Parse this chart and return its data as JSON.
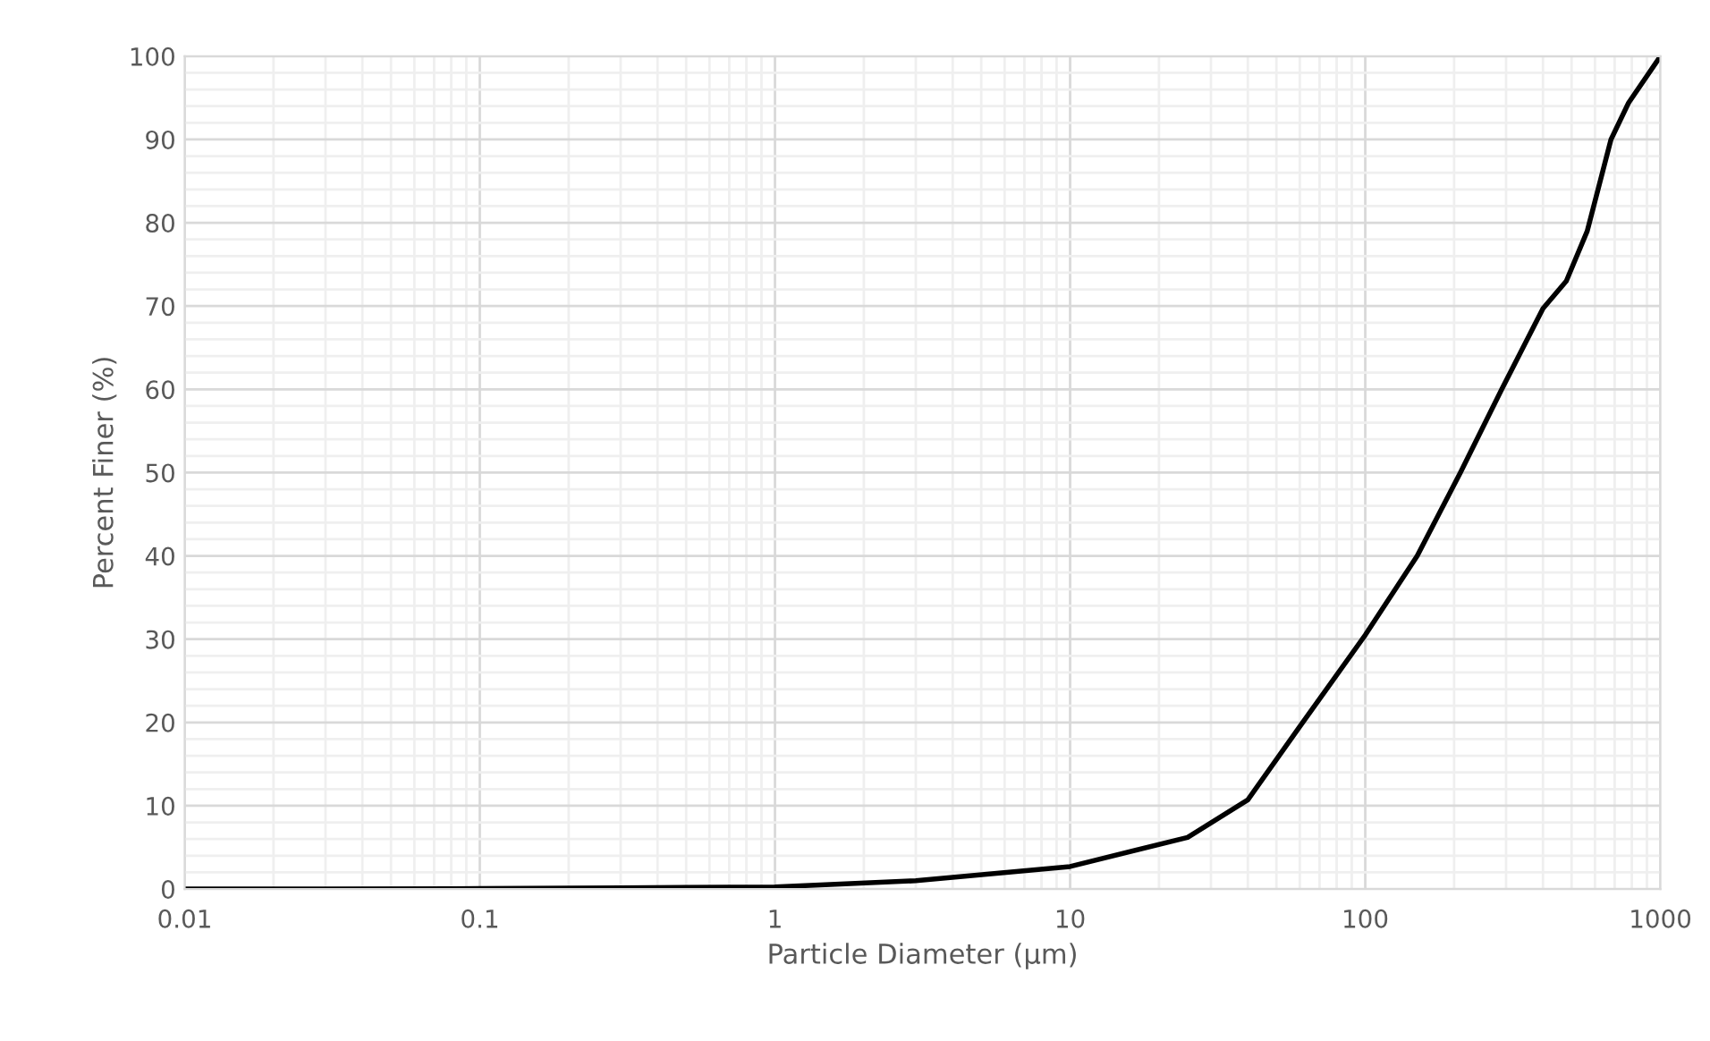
{
  "chart_data": {
    "type": "line",
    "xlabel": "Particle Diameter (µm)",
    "ylabel": "Percent Finer (%)",
    "log": "x",
    "xlim": [
      0.01,
      1000
    ],
    "xticks": [
      0.01,
      0.1,
      1,
      10,
      100,
      1000
    ],
    "ylim": [
      0,
      100
    ],
    "yticks": [
      0,
      10,
      20,
      30,
      40,
      50,
      60,
      70,
      80,
      90,
      100
    ],
    "grid": true,
    "marker": "none",
    "line_style": "solid",
    "series": [
      {
        "color": "#000000",
        "x": [
          0.01,
          0.03,
          0.1,
          0.3,
          1,
          3,
          10,
          25,
          40,
          60,
          100,
          150,
          210,
          290,
          400,
          480,
          565,
          680,
          780,
          1000
        ],
        "values": [
          0,
          0,
          0.05,
          0.15,
          0.25,
          1,
          2.7,
          6.2,
          10.7,
          19.5,
          30.5,
          40,
          50,
          60,
          69.7,
          73,
          79,
          90,
          94.4,
          100
        ]
      }
    ]
  }
}
